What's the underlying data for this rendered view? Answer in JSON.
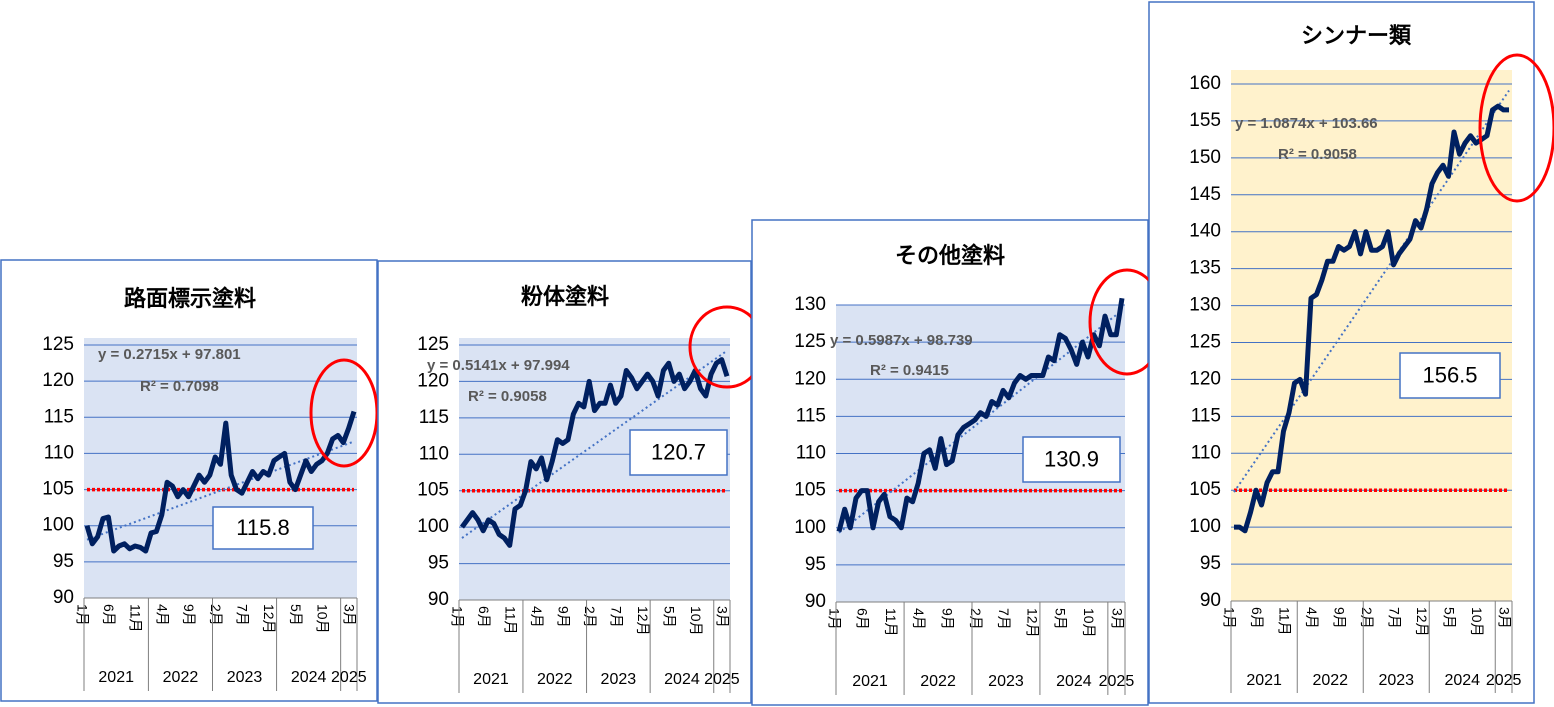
{
  "chart_data": [
    {
      "type": "line",
      "title": "路面標示塗料",
      "categories": [
        "1月",
        null,
        null,
        null,
        null,
        "6月",
        null,
        null,
        null,
        null,
        "11月",
        null,
        null,
        null,
        null,
        "4月",
        null,
        null,
        null,
        null,
        "9月",
        null,
        null,
        null,
        null,
        "2月",
        null,
        null,
        null,
        null,
        "7月",
        null,
        null,
        null,
        null,
        "12月",
        null,
        null,
        null,
        null,
        "5月",
        null,
        null,
        null,
        null,
        "10月",
        null,
        null,
        null,
        null,
        "3月"
      ],
      "groups": [
        "2021",
        "2022",
        "2023",
        "2024",
        "2025"
      ],
      "group_sizes": [
        12,
        12,
        12,
        12,
        3
      ],
      "values": [
        100,
        97.5,
        98.5,
        101,
        101.2,
        96.5,
        97.2,
        97.5,
        96.8,
        97.2,
        97,
        96.5,
        99,
        99.2,
        101.5,
        106,
        105.5,
        104,
        105,
        104,
        105.5,
        107,
        106,
        107,
        109.5,
        108.5,
        114.2,
        107,
        105,
        104.5,
        106,
        107.5,
        106.5,
        107.5,
        107,
        109,
        109.5,
        110,
        106,
        105,
        107,
        109,
        107.5,
        108.5,
        109,
        110,
        112,
        112.5,
        111.5,
        113.5,
        115.8
      ],
      "color": "#002060",
      "background": "#dae3f3",
      "ylim": [
        90,
        125
      ],
      "yticks": [
        90,
        95,
        100,
        105,
        110,
        115,
        120,
        125
      ],
      "reference_line": 105,
      "reference_color": "#ff0000",
      "trendline": {
        "label": "y = 0.2715x + 97.801",
        "r2_label": "R² = 0.7098",
        "slope": 0.2715,
        "intercept": 97.801
      },
      "annotation": "115.8"
    },
    {
      "type": "line",
      "title": "粉体塗料",
      "categories": [
        "1月",
        null,
        null,
        null,
        null,
        "6月",
        null,
        null,
        null,
        null,
        "11月",
        null,
        null,
        null,
        null,
        "4月",
        null,
        null,
        null,
        null,
        "9月",
        null,
        null,
        null,
        null,
        "2月",
        null,
        null,
        null,
        null,
        "7月",
        null,
        null,
        null,
        null,
        "12月",
        null,
        null,
        null,
        null,
        "5月",
        null,
        null,
        null,
        null,
        "10月",
        null,
        null,
        null,
        null,
        "3月"
      ],
      "groups": [
        "2021",
        "2022",
        "2023",
        "2024",
        "2025"
      ],
      "group_sizes": [
        12,
        12,
        12,
        12,
        3
      ],
      "values": [
        100,
        101,
        102,
        101,
        99.5,
        101,
        100.5,
        99,
        98.5,
        97.5,
        102.5,
        103,
        105,
        109,
        108,
        109.5,
        106.5,
        109,
        112,
        111.5,
        112,
        115.5,
        117,
        116.5,
        120,
        116,
        117,
        117,
        119.5,
        117,
        118,
        121.5,
        120.5,
        119,
        120,
        121,
        120,
        118,
        121.5,
        122.5,
        120,
        121,
        119,
        120,
        121.5,
        119,
        118,
        121,
        122.5,
        123,
        120.7
      ],
      "color": "#002060",
      "background": "#dae3f3",
      "ylim": [
        90,
        125
      ],
      "yticks": [
        90,
        95,
        100,
        105,
        110,
        115,
        120,
        125
      ],
      "reference_line": 105,
      "reference_color": "#ff0000",
      "trendline": {
        "label": "y = 0.5141x + 97.994",
        "r2_label": "R² = 0.9058",
        "slope": 0.5141,
        "intercept": 97.994
      },
      "annotation": "120.7"
    },
    {
      "type": "line",
      "title": "その他塗料",
      "categories": [
        "1月",
        null,
        null,
        null,
        null,
        "6月",
        null,
        null,
        null,
        null,
        "11月",
        null,
        null,
        null,
        null,
        "4月",
        null,
        null,
        null,
        null,
        "9月",
        null,
        null,
        null,
        null,
        "2月",
        null,
        null,
        null,
        null,
        "7月",
        null,
        null,
        null,
        null,
        "12月",
        null,
        null,
        null,
        null,
        "5月",
        null,
        null,
        null,
        null,
        "10月",
        null,
        null,
        null,
        null,
        "3月"
      ],
      "groups": [
        "2021",
        "2022",
        "2023",
        "2024",
        "2025"
      ],
      "group_sizes": [
        12,
        12,
        12,
        12,
        3
      ],
      "values": [
        99.5,
        102.5,
        100,
        104,
        105,
        105,
        100,
        103.5,
        104.5,
        101.5,
        101,
        100,
        104,
        103.5,
        106,
        110,
        110.5,
        108,
        112,
        108.5,
        109,
        112.5,
        113.5,
        114,
        114.5,
        115.5,
        115,
        117,
        116.5,
        118.5,
        117.5,
        119.5,
        120.5,
        120,
        120.5,
        120.5,
        120.5,
        123,
        122.5,
        126,
        125.5,
        124,
        122,
        125,
        123,
        126,
        124.5,
        128.5,
        126,
        126,
        130.9
      ],
      "color": "#002060",
      "background": "#dae3f3",
      "ylim": [
        90,
        130
      ],
      "yticks": [
        90,
        95,
        100,
        105,
        110,
        115,
        120,
        125,
        130
      ],
      "reference_line": 105,
      "reference_color": "#ff0000",
      "trendline": {
        "label": "y = 0.5987x + 98.739",
        "r2_label": "R² = 0.9415",
        "slope": 0.5987,
        "intercept": 98.739
      },
      "annotation": "130.9"
    },
    {
      "type": "line",
      "title": "シンナー類",
      "categories": [
        "1月",
        null,
        null,
        null,
        null,
        "6月",
        null,
        null,
        null,
        null,
        "11月",
        null,
        null,
        null,
        null,
        "4月",
        null,
        null,
        null,
        null,
        "9月",
        null,
        null,
        null,
        null,
        "2月",
        null,
        null,
        null,
        null,
        "7月",
        null,
        null,
        null,
        null,
        "12月",
        null,
        null,
        null,
        null,
        "5月",
        null,
        null,
        null,
        null,
        "10月",
        null,
        null,
        null,
        null,
        "3月"
      ],
      "groups": [
        "2021",
        "2022",
        "2023",
        "2024",
        "2025"
      ],
      "group_sizes": [
        12,
        12,
        12,
        12,
        3
      ],
      "values": [
        100,
        100,
        99.5,
        102,
        105,
        103,
        106,
        107.5,
        107.5,
        113,
        115.5,
        119.5,
        120,
        118,
        131,
        131.5,
        133.5,
        136,
        136,
        138,
        137.5,
        138,
        140,
        137,
        140,
        137.5,
        137.5,
        138,
        140,
        135.5,
        137,
        138,
        139,
        141.5,
        140.5,
        143,
        146.5,
        148,
        149,
        147.5,
        153.5,
        150.5,
        152,
        153,
        152,
        152.5,
        153,
        156.5,
        157,
        156.5,
        156.5
      ],
      "color": "#002060",
      "background": "#fff2cc",
      "ylim": [
        90,
        160
      ],
      "yticks": [
        90,
        95,
        100,
        105,
        110,
        115,
        120,
        125,
        130,
        135,
        140,
        145,
        150,
        155,
        160
      ],
      "reference_line": 105,
      "reference_color": "#ff0000",
      "trendline": {
        "label": "y = 1.0874x + 103.66",
        "r2_label": "R² = 0.9058",
        "slope": 1.0874,
        "intercept": 103.66
      },
      "annotation": "156.5"
    }
  ]
}
